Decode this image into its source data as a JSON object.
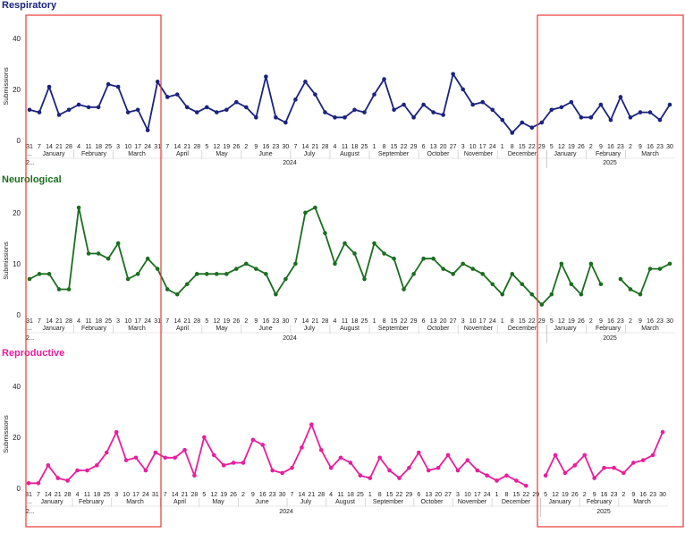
{
  "chart_data": [
    {
      "type": "line",
      "title": "Respiratory",
      "ylabel": "Submissions",
      "yticks": [
        0,
        20,
        40
      ],
      "ylim": [
        0,
        48
      ],
      "color": "#1a237e",
      "x_tick_labels": [
        "31",
        "7",
        "14",
        "21",
        "28",
        "4",
        "11",
        "18",
        "25",
        "3",
        "10",
        "17",
        "24",
        "31",
        "7",
        "14",
        "21",
        "28",
        "5",
        "12",
        "19",
        "26",
        "2",
        "9",
        "16",
        "23",
        "30",
        "7",
        "14",
        "21",
        "28",
        "4",
        "11",
        "18",
        "25",
        "1",
        "8",
        "15",
        "22",
        "29",
        "6",
        "13",
        "20",
        "27",
        "3",
        "10",
        "17",
        "24",
        "1",
        "8",
        "15",
        "22",
        "29",
        "5",
        "12",
        "19",
        "26",
        "2",
        "9",
        "16",
        "23",
        "2",
        "9",
        "16",
        "23",
        "30"
      ],
      "values": [
        12,
        11,
        21,
        10,
        12,
        14,
        13,
        13,
        22,
        21,
        11,
        12,
        4,
        23,
        17,
        18,
        13,
        11,
        13,
        11,
        12,
        15,
        13,
        9,
        25,
        9,
        7,
        16,
        23,
        18,
        11,
        9,
        9,
        12,
        11,
        18,
        24,
        12,
        14,
        9,
        14,
        11,
        10,
        26,
        20,
        14,
        15,
        12,
        8,
        3,
        7,
        5,
        7,
        12,
        13,
        15,
        9,
        9,
        14,
        8,
        17,
        9,
        11,
        11,
        8,
        14
      ],
      "month_labels": [
        "January",
        "February",
        "March",
        "April",
        "May",
        "June",
        "July",
        "August",
        "September",
        "October",
        "November",
        "December",
        "January",
        "February",
        "March"
      ],
      "year_labels": [
        "2024",
        "2025"
      ],
      "corner_labels": [
        "2...",
        "..."
      ]
    },
    {
      "type": "line",
      "title": "Neurological",
      "ylabel": "Submissions",
      "yticks": [
        0,
        10,
        20
      ],
      "ylim": [
        0,
        24
      ],
      "color": "#1b6e20",
      "x_tick_labels": [
        "31",
        "7",
        "14",
        "21",
        "28",
        "4",
        "11",
        "18",
        "25",
        "3",
        "10",
        "17",
        "24",
        "31",
        "7",
        "14",
        "21",
        "28",
        "5",
        "12",
        "19",
        "26",
        "2",
        "9",
        "16",
        "23",
        "30",
        "7",
        "14",
        "21",
        "28",
        "4",
        "11",
        "18",
        "25",
        "1",
        "8",
        "15",
        "22",
        "29",
        "6",
        "13",
        "20",
        "27",
        "3",
        "10",
        "17",
        "24",
        "1",
        "8",
        "15",
        "22",
        "29",
        "5",
        "12",
        "19",
        "26",
        "2",
        "9",
        "16",
        "23",
        "2",
        "9",
        "16",
        "23",
        "30"
      ],
      "values": [
        7,
        8,
        8,
        5,
        5,
        21,
        12,
        12,
        11,
        14,
        7,
        8,
        11,
        9,
        5,
        4,
        6,
        8,
        8,
        8,
        8,
        9,
        10,
        9,
        8,
        4,
        7,
        10,
        20,
        21,
        16,
        10,
        14,
        12,
        7,
        14,
        12,
        11,
        5,
        8,
        11,
        11,
        9,
        8,
        10,
        9,
        8,
        6,
        4,
        8,
        6,
        4,
        2,
        4,
        10,
        6,
        4,
        10,
        6,
        null,
        7,
        5,
        4,
        9,
        9,
        10
      ],
      "month_labels": [
        "January",
        "February",
        "March",
        "April",
        "May",
        "June",
        "July",
        "August",
        "September",
        "October",
        "November",
        "December",
        "January",
        "February",
        "March"
      ],
      "year_labels": [
        "2024",
        "2025"
      ],
      "corner_labels": [
        "2...",
        "..."
      ]
    },
    {
      "type": "line",
      "title": "Reproductive",
      "ylabel": "Submissions",
      "yticks": [
        0,
        20,
        40
      ],
      "ylim": [
        0,
        48
      ],
      "color": "#e91e9c",
      "x_tick_labels": [
        "31",
        "7",
        "14",
        "21",
        "28",
        "4",
        "11",
        "18",
        "25",
        "3",
        "10",
        "17",
        "24",
        "31",
        "7",
        "14",
        "21",
        "28",
        "5",
        "12",
        "19",
        "26",
        "2",
        "9",
        "16",
        "23",
        "30",
        "7",
        "14",
        "21",
        "28",
        "4",
        "11",
        "18",
        "25",
        "1",
        "8",
        "15",
        "22",
        "29",
        "6",
        "13",
        "20",
        "27",
        "3",
        "10",
        "17",
        "24",
        "1",
        "8",
        "15",
        "22",
        "29",
        "5",
        "12",
        "19",
        "26",
        "2",
        "9",
        "16",
        "23",
        "2",
        "9",
        "16",
        "23",
        "30"
      ],
      "values": [
        2,
        2,
        9,
        4,
        3,
        7,
        7,
        9,
        14,
        22,
        11,
        12,
        7,
        14,
        12,
        12,
        15,
        5,
        20,
        13,
        9,
        10,
        10,
        19,
        17,
        7,
        6,
        8,
        16,
        25,
        15,
        8,
        12,
        10,
        5,
        4,
        12,
        7,
        4,
        8,
        14,
        7,
        8,
        13,
        7,
        11,
        7,
        5,
        3,
        5,
        3,
        1,
        null,
        5,
        13,
        6,
        9,
        13,
        4,
        8,
        8,
        6,
        10,
        11,
        13,
        22
      ],
      "month_labels": [
        "January",
        "February",
        "March",
        "April",
        "May",
        "June",
        "July",
        "August",
        "September",
        "October",
        "November",
        "December",
        "January",
        "February",
        "March"
      ],
      "year_labels": [
        "2024",
        "2025"
      ],
      "corner_labels": [
        "2...",
        "..."
      ]
    }
  ],
  "highlights": [
    {
      "name": "highlight-early-2024",
      "color": "#e53935"
    },
    {
      "name": "highlight-early-2025",
      "color": "#e53935"
    }
  ]
}
